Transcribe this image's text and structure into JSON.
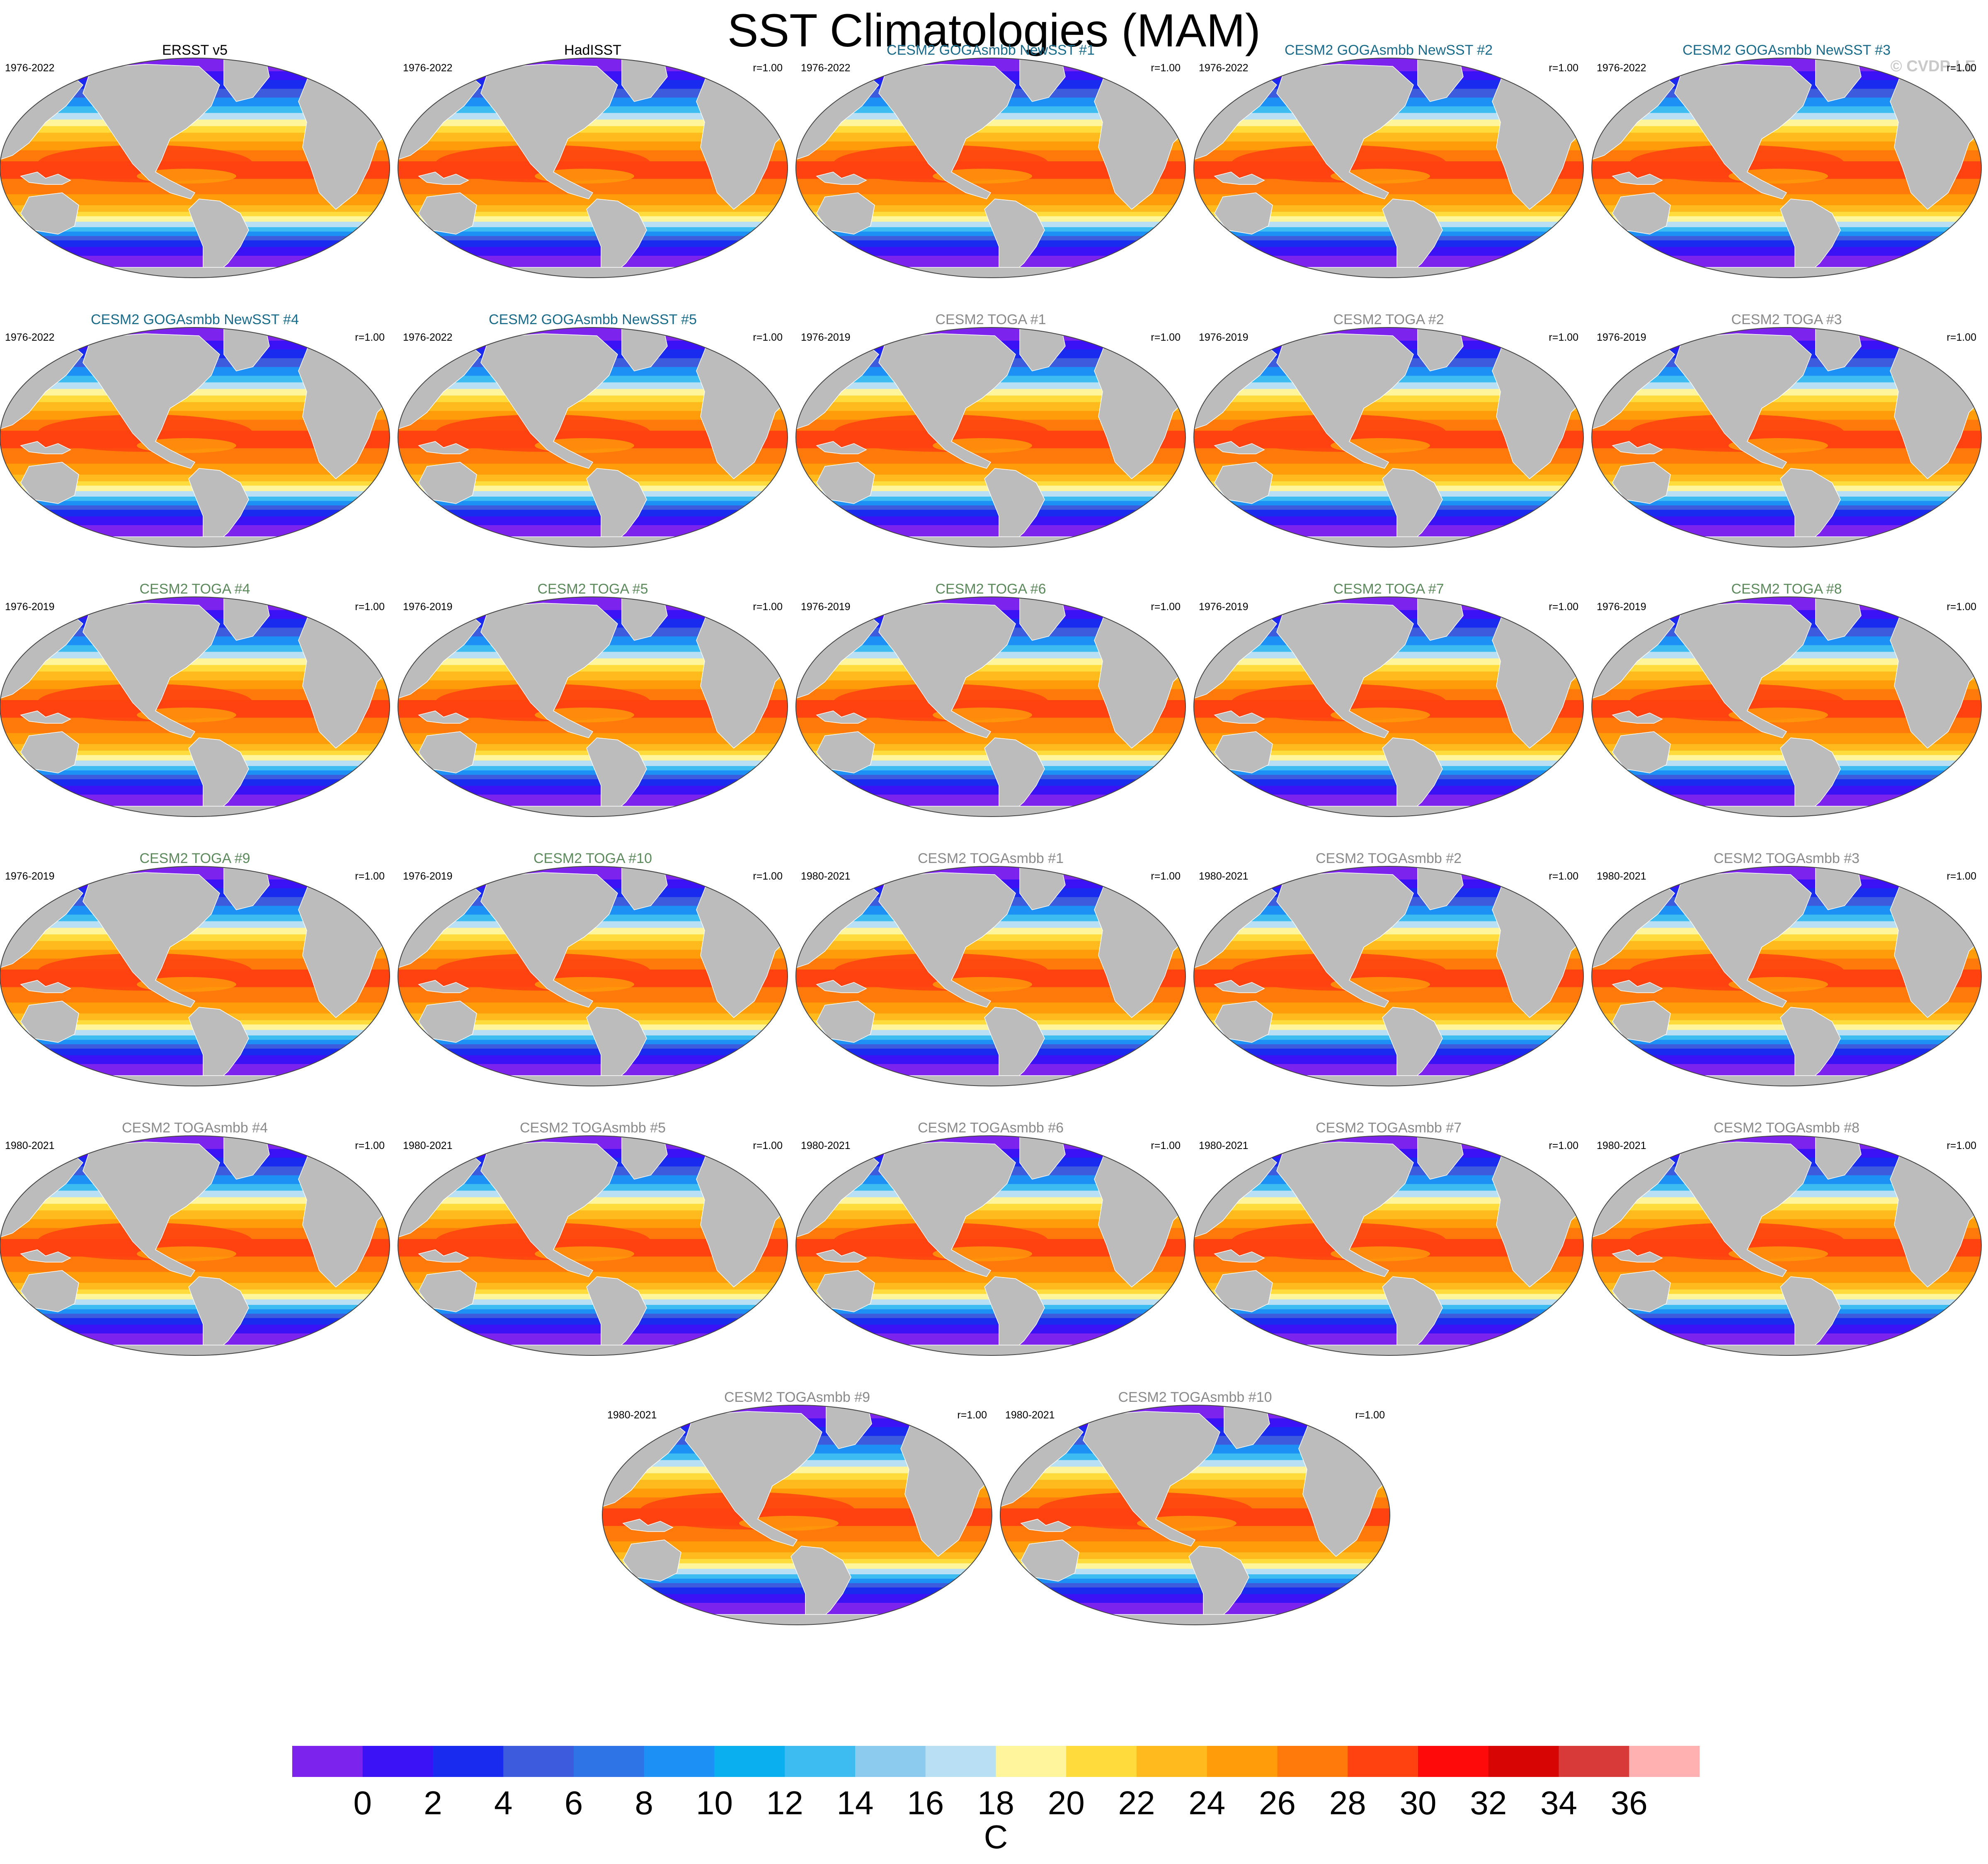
{
  "title": "SST Climatologies (MAM)",
  "copyright": "© CVDP-LE",
  "colors": {
    "land": "#bcbcbc",
    "title_obs": "#000000",
    "title_goga": "#1a6b8a",
    "title_toga": "#5c8a5c",
    "title_togasmbb": "#8a8a8a"
  },
  "chart_data": {
    "type": "heatmap",
    "description_type": "map-panels",
    "panels": [
      {
        "title": "ERSST v5",
        "period": "1976-2022",
        "r": "",
        "group": "obs"
      },
      {
        "title": "HadISST",
        "period": "1976-2022",
        "r": "r=1.00",
        "group": "obs"
      },
      {
        "title": "CESM2 GOGAsmbb NewSST #1",
        "period": "1976-2022",
        "r": "r=1.00",
        "group": "goga"
      },
      {
        "title": "CESM2 GOGAsmbb NewSST #2",
        "period": "1976-2022",
        "r": "r=1.00",
        "group": "goga"
      },
      {
        "title": "CESM2 GOGAsmbb NewSST #3",
        "period": "1976-2022",
        "r": "r=1.00",
        "group": "goga"
      },
      {
        "title": "CESM2 GOGAsmbb NewSST #4",
        "period": "1976-2022",
        "r": "r=1.00",
        "group": "goga"
      },
      {
        "title": "CESM2 GOGAsmbb NewSST #5",
        "period": "1976-2022",
        "r": "r=1.00",
        "group": "goga"
      },
      {
        "title": "CESM2 TOGA #1",
        "period": "1976-2019",
        "r": "r=1.00",
        "group": "togasmbb"
      },
      {
        "title": "CESM2 TOGA #2",
        "period": "1976-2019",
        "r": "r=1.00",
        "group": "togasmbb"
      },
      {
        "title": "CESM2 TOGA #3",
        "period": "1976-2019",
        "r": "r=1.00",
        "group": "togasmbb"
      },
      {
        "title": "CESM2 TOGA #4",
        "period": "1976-2019",
        "r": "r=1.00",
        "group": "toga"
      },
      {
        "title": "CESM2 TOGA #5",
        "period": "1976-2019",
        "r": "r=1.00",
        "group": "toga"
      },
      {
        "title": "CESM2 TOGA #6",
        "period": "1976-2019",
        "r": "r=1.00",
        "group": "toga"
      },
      {
        "title": "CESM2 TOGA #7",
        "period": "1976-2019",
        "r": "r=1.00",
        "group": "toga"
      },
      {
        "title": "CESM2 TOGA #8",
        "period": "1976-2019",
        "r": "r=1.00",
        "group": "toga"
      },
      {
        "title": "CESM2 TOGA #9",
        "period": "1976-2019",
        "r": "r=1.00",
        "group": "toga"
      },
      {
        "title": "CESM2 TOGA #10",
        "period": "1976-2019",
        "r": "r=1.00",
        "group": "toga"
      },
      {
        "title": "CESM2 TOGAsmbb #1",
        "period": "1980-2021",
        "r": "r=1.00",
        "group": "togasmbb"
      },
      {
        "title": "CESM2 TOGAsmbb #2",
        "period": "1980-2021",
        "r": "r=1.00",
        "group": "togasmbb"
      },
      {
        "title": "CESM2 TOGAsmbb #3",
        "period": "1980-2021",
        "r": "r=1.00",
        "group": "togasmbb"
      },
      {
        "title": "CESM2 TOGAsmbb #4",
        "period": "1980-2021",
        "r": "r=1.00",
        "group": "togasmbb"
      },
      {
        "title": "CESM2 TOGAsmbb #5",
        "period": "1980-2021",
        "r": "r=1.00",
        "group": "togasmbb"
      },
      {
        "title": "CESM2 TOGAsmbb #6",
        "period": "1980-2021",
        "r": "r=1.00",
        "group": "togasmbb"
      },
      {
        "title": "CESM2 TOGAsmbb #7",
        "period": "1980-2021",
        "r": "r=1.00",
        "group": "togasmbb"
      },
      {
        "title": "CESM2 TOGAsmbb #8",
        "period": "1980-2021",
        "r": "r=1.00",
        "group": "togasmbb"
      },
      {
        "title": "CESM2 TOGAsmbb #9",
        "period": "1980-2021",
        "r": "r=1.00",
        "group": "togasmbb"
      },
      {
        "title": "CESM2 TOGAsmbb #10",
        "period": "1980-2021",
        "r": "r=1.00",
        "group": "togasmbb"
      }
    ],
    "colorbar": {
      "min": -1,
      "max": 38,
      "step": 2,
      "tick_labels": [
        "0",
        "2",
        "4",
        "6",
        "8",
        "10",
        "12",
        "14",
        "16",
        "18",
        "20",
        "22",
        "24",
        "26",
        "28",
        "30",
        "32",
        "34",
        "36"
      ],
      "unit": "C",
      "colors": [
        "#7d23ee",
        "#3a12f5",
        "#1a2bf0",
        "#3d5cdd",
        "#2f74e6",
        "#1d90f5",
        "#0aafef",
        "#3dbcf2",
        "#8ccbee",
        "#b8dff3",
        "#fff59c",
        "#ffdb3c",
        "#ffbb1d",
        "#ff9c0a",
        "#ff7a0a",
        "#ff4210",
        "#ff0a0a",
        "#d80505",
        "#d83a3a",
        "#ffb0b0"
      ]
    }
  }
}
